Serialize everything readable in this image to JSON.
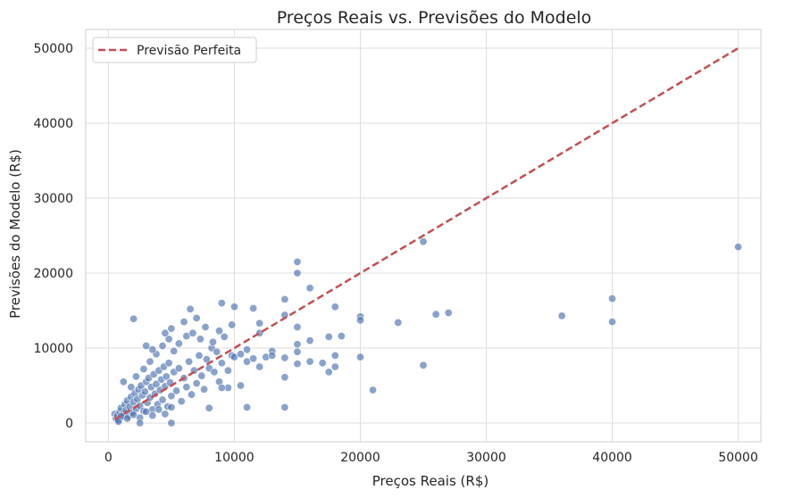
{
  "chart_data": {
    "type": "scatter",
    "title": "Preços Reais vs. Previsões do Modelo",
    "xlabel": "Preços Reais (R$)",
    "ylabel": "Previsões do Modelo (R$)",
    "xlim": [
      -1800,
      51800
    ],
    "ylim": [
      -2500,
      52500
    ],
    "xticks": [
      0,
      10000,
      20000,
      30000,
      40000,
      50000
    ],
    "xtick_labels": [
      "0",
      "10000",
      "20000",
      "30000",
      "40000",
      "50000"
    ],
    "yticks": [
      0,
      10000,
      20000,
      30000,
      40000,
      50000
    ],
    "ytick_labels": [
      "0",
      "10000",
      "20000",
      "30000",
      "40000",
      "50000"
    ],
    "grid": true,
    "legend": {
      "position": "top-left",
      "entries": [
        "Previsão Perfeita"
      ]
    },
    "reference_line": {
      "name": "Previsão Perfeita",
      "x": [
        500,
        50000
      ],
      "y": [
        500,
        50000
      ],
      "style": "dashed",
      "color": "#c44e52"
    },
    "point_color": "#4c72b0",
    "line_color": "#c44e52",
    "series": [
      {
        "name": "",
        "points": [
          [
            500,
            1200
          ],
          [
            600,
            600
          ],
          [
            700,
            1000
          ],
          [
            800,
            400
          ],
          [
            900,
            1500
          ],
          [
            1000,
            2000
          ],
          [
            1100,
            800
          ],
          [
            1200,
            1300
          ],
          [
            1300,
            2500
          ],
          [
            1400,
            1700
          ],
          [
            1500,
            3000
          ],
          [
            1600,
            900
          ],
          [
            1700,
            2200
          ],
          [
            1800,
            3500
          ],
          [
            1900,
            1400
          ],
          [
            2000,
            2800
          ],
          [
            2100,
            4000
          ],
          [
            2200,
            1900
          ],
          [
            2300,
            3200
          ],
          [
            2400,
            4500
          ],
          [
            2500,
            2300
          ],
          [
            2600,
            5000
          ],
          [
            2700,
            3700
          ],
          [
            2800,
            1600
          ],
          [
            2900,
            4200
          ],
          [
            3000,
            5500
          ],
          [
            3100,
            2700
          ],
          [
            3200,
            6000
          ],
          [
            3300,
            3400
          ],
          [
            3400,
            4800
          ],
          [
            3500,
            1800
          ],
          [
            3600,
            6500
          ],
          [
            3700,
            3900
          ],
          [
            3800,
            5200
          ],
          [
            3900,
            2500
          ],
          [
            4000,
            7000
          ],
          [
            4100,
            4400
          ],
          [
            4200,
            5800
          ],
          [
            4300,
            3100
          ],
          [
            4400,
            7500
          ],
          [
            4500,
            4900
          ],
          [
            4600,
            6200
          ],
          [
            4700,
            2200
          ],
          [
            4800,
            8000
          ],
          [
            4900,
            5400
          ],
          [
            5000,
            3600
          ],
          [
            5200,
            6800
          ],
          [
            5400,
            4300
          ],
          [
            5600,
            7300
          ],
          [
            5800,
            2900
          ],
          [
            6000,
            6000
          ],
          [
            6200,
            4800
          ],
          [
            6400,
            8200
          ],
          [
            6600,
            3800
          ],
          [
            6800,
            7000
          ],
          [
            7000,
            5300
          ],
          [
            7200,
            9000
          ],
          [
            7400,
            6300
          ],
          [
            7600,
            4500
          ],
          [
            7800,
            8500
          ],
          [
            8000,
            7300
          ],
          [
            8200,
            10000
          ],
          [
            8400,
            6800
          ],
          [
            8600,
            9500
          ],
          [
            8800,
            5500
          ],
          [
            9000,
            8000
          ],
          [
            9200,
            11500
          ],
          [
            9500,
            7000
          ],
          [
            9800,
            9000
          ],
          [
            1000,
            900
          ],
          [
            1500,
            600
          ],
          [
            2000,
            1100
          ],
          [
            2500,
            700
          ],
          [
            3000,
            1500
          ],
          [
            3500,
            1000
          ],
          [
            4000,
            1800
          ],
          [
            4500,
            1200
          ],
          [
            5000,
            2100
          ],
          [
            1200,
            5500
          ],
          [
            1800,
            4800
          ],
          [
            2200,
            6200
          ],
          [
            2800,
            7200
          ],
          [
            3300,
            8200
          ],
          [
            3800,
            9200
          ],
          [
            4300,
            10300
          ],
          [
            4800,
            11200
          ],
          [
            5200,
            9600
          ],
          [
            5600,
            10600
          ],
          [
            6200,
            11600
          ],
          [
            6700,
            12000
          ],
          [
            7300,
            11200
          ],
          [
            7700,
            12800
          ],
          [
            8300,
            10800
          ],
          [
            8800,
            12300
          ],
          [
            9800,
            13100
          ],
          [
            3000,
            10300
          ],
          [
            3500,
            9800
          ],
          [
            4500,
            12000
          ],
          [
            5000,
            12600
          ],
          [
            6000,
            13500
          ],
          [
            6500,
            15200
          ],
          [
            7000,
            14000
          ],
          [
            9000,
            16000
          ],
          [
            10000,
            15500
          ],
          [
            9500,
            4700
          ],
          [
            10000,
            8800
          ],
          [
            10500,
            9200
          ],
          [
            11000,
            8200
          ],
          [
            11500,
            8600
          ],
          [
            12000,
            7500
          ],
          [
            12500,
            8800
          ],
          [
            13000,
            9600
          ],
          [
            14000,
            8700
          ],
          [
            14000,
            6100
          ],
          [
            15000,
            7900
          ],
          [
            15000,
            9500
          ],
          [
            15000,
            10500
          ],
          [
            15000,
            12800
          ],
          [
            15000,
            20000
          ],
          [
            15000,
            21500
          ],
          [
            14000,
            16500
          ],
          [
            14000,
            14400
          ],
          [
            16000,
            18000
          ],
          [
            16000,
            11000
          ],
          [
            16000,
            8200
          ],
          [
            17000,
            8000
          ],
          [
            17500,
            11500
          ],
          [
            18000,
            15500
          ],
          [
            18000,
            7500
          ],
          [
            18000,
            9000
          ],
          [
            18500,
            11600
          ],
          [
            20000,
            14200
          ],
          [
            20000,
            13700
          ],
          [
            20000,
            8800
          ],
          [
            21000,
            4400
          ],
          [
            23000,
            13400
          ],
          [
            25000,
            24200
          ],
          [
            25000,
            7700
          ],
          [
            26000,
            14500
          ],
          [
            27000,
            14700
          ],
          [
            36000,
            14300
          ],
          [
            40000,
            16600
          ],
          [
            40000,
            13500
          ],
          [
            50000,
            23500
          ],
          [
            2000,
            13900
          ],
          [
            11000,
            2100
          ],
          [
            14000,
            2100
          ],
          [
            8000,
            2000
          ],
          [
            9000,
            4700
          ],
          [
            10500,
            5000
          ],
          [
            11000,
            9800
          ],
          [
            12000,
            13300
          ],
          [
            13000,
            9000
          ],
          [
            12000,
            12000
          ],
          [
            11500,
            15300
          ],
          [
            17500,
            6800
          ],
          [
            5000,
            0
          ],
          [
            2500,
            0
          ],
          [
            800,
            200
          ]
        ]
      }
    ]
  }
}
